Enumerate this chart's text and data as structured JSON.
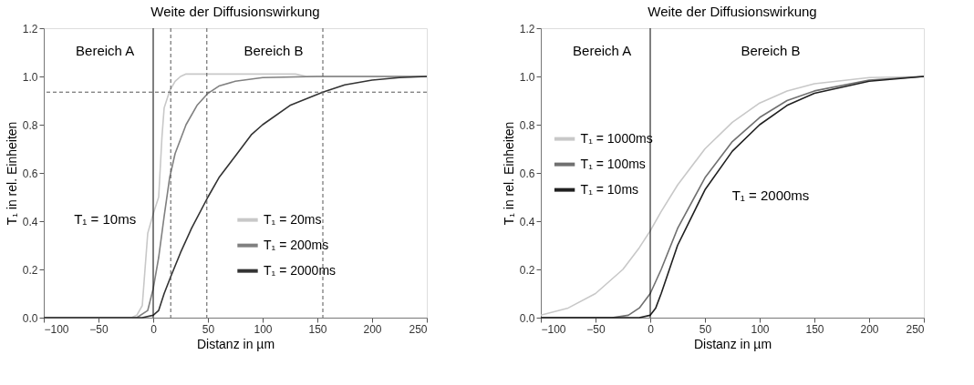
{
  "chart_data": [
    {
      "type": "line",
      "title": "Weite der Diffusionswirkung",
      "xlabel": "Distanz in µm",
      "ylabel": "T₁ in rel. Einheiten",
      "xlim": [
        -100,
        250
      ],
      "xticks": [
        -100,
        -50,
        0,
        50,
        100,
        150,
        200,
        250
      ],
      "ylim": [
        0,
        1.2
      ],
      "yticks": [
        {
          "value": 0,
          "label": "0.0"
        },
        {
          "value": 0.2,
          "label": "0.2"
        },
        {
          "value": 0.4,
          "label": "0.4"
        },
        {
          "value": 0.6,
          "label": "0.6"
        },
        {
          "value": 0.8,
          "label": "0.8"
        },
        {
          "value": 1,
          "label": "1.0"
        },
        {
          "value": 1.2,
          "label": "1.2"
        }
      ],
      "grid": false,
      "legend": "bottom",
      "marker": "none",
      "line_style": "solid",
      "annotations": [
        "Bereich A",
        "Bereich B",
        "T₁ = 10ms"
      ],
      "ref_lines": [
        {
          "axis": "x",
          "value": 0,
          "color": "#000000",
          "line_style": "solid"
        },
        {
          "axis": "y",
          "value": 0.935,
          "color": "#555555",
          "line_style": "dashed"
        },
        {
          "axis": "x",
          "value": 16,
          "color": "#555555",
          "line_style": "dashed"
        },
        {
          "axis": "x",
          "value": 49,
          "color": "#555555",
          "line_style": "dashed"
        },
        {
          "axis": "x",
          "value": 155,
          "color": "#555555",
          "line_style": "dashed"
        }
      ],
      "series": [
        {
          "name": "T₁ = 20ms",
          "color": "#c8c8c8",
          "x": [
            -100,
            -20,
            -15,
            -10,
            -5,
            0,
            5,
            8,
            10,
            15,
            20,
            25,
            30,
            130,
            140,
            250
          ],
          "values": [
            0,
            0,
            0.01,
            0.05,
            0.35,
            0.43,
            0.5,
            0.75,
            0.87,
            0.94,
            0.98,
            1.0,
            1.01,
            1.01,
            1.0,
            1.0
          ]
        },
        {
          "name": "T₁ = 200ms",
          "color": "#808080",
          "x": [
            -100,
            -15,
            -5,
            0,
            5,
            10,
            15,
            20,
            30,
            40,
            50,
            60,
            75,
            100,
            150,
            250
          ],
          "values": [
            0,
            0,
            0.03,
            0.12,
            0.25,
            0.42,
            0.58,
            0.68,
            0.8,
            0.88,
            0.93,
            0.96,
            0.98,
            0.995,
            1.0,
            1.0
          ]
        },
        {
          "name": "T₁ = 2000ms",
          "color": "#333333",
          "x": [
            -100,
            -10,
            0,
            5,
            10,
            16,
            25,
            35,
            50,
            60,
            75,
            90,
            100,
            125,
            155,
            175,
            200,
            225,
            250
          ],
          "values": [
            0,
            0,
            0.01,
            0.03,
            0.1,
            0.17,
            0.27,
            0.37,
            0.5,
            0.58,
            0.67,
            0.76,
            0.8,
            0.88,
            0.935,
            0.965,
            0.985,
            0.995,
            1.0
          ]
        }
      ]
    },
    {
      "type": "line",
      "title": "Weite der Diffusionswirkung",
      "xlabel": "Distanz in µm",
      "ylabel": "T₁ in rel. Einheiten",
      "xlim": [
        -100,
        250
      ],
      "xticks": [
        -100,
        -50,
        0,
        50,
        100,
        150,
        200,
        250
      ],
      "ylim": [
        0,
        1.2
      ],
      "yticks": [
        {
          "value": 0,
          "label": "0.0"
        },
        {
          "value": 0.2,
          "label": "0.2"
        },
        {
          "value": 0.4,
          "label": "0.4"
        },
        {
          "value": 0.6,
          "label": "0.6"
        },
        {
          "value": 0.8,
          "label": "0.8"
        },
        {
          "value": 1,
          "label": "1.0"
        },
        {
          "value": 1.2,
          "label": "1.2"
        }
      ],
      "grid": false,
      "legend": "left",
      "marker": "none",
      "line_style": "solid",
      "annotations": [
        "Bereich A",
        "Bereich B",
        "T₁ = 2000ms"
      ],
      "ref_lines": [
        {
          "axis": "x",
          "value": 0,
          "color": "#000000",
          "line_style": "solid"
        }
      ],
      "series": [
        {
          "name": "T₁ = 1000ms",
          "color": "#c8c8c8",
          "x": [
            -100,
            -75,
            -50,
            -25,
            -10,
            0,
            10,
            25,
            50,
            75,
            100,
            125,
            150,
            200,
            250
          ],
          "values": [
            0.01,
            0.04,
            0.1,
            0.2,
            0.29,
            0.36,
            0.44,
            0.55,
            0.7,
            0.81,
            0.89,
            0.94,
            0.97,
            0.995,
            1.0
          ]
        },
        {
          "name": "T₁ = 100ms",
          "color": "#707070",
          "x": [
            -100,
            -35,
            -20,
            -10,
            -5,
            0,
            10,
            25,
            50,
            75,
            100,
            125,
            150,
            200,
            250
          ],
          "values": [
            0,
            0,
            0.01,
            0.04,
            0.07,
            0.1,
            0.2,
            0.37,
            0.58,
            0.73,
            0.83,
            0.9,
            0.94,
            0.985,
            1.0
          ]
        },
        {
          "name": "T₁ = 10ms",
          "color": "#202020",
          "x": [
            -100,
            -10,
            0,
            5,
            10,
            25,
            50,
            75,
            100,
            125,
            150,
            200,
            250
          ],
          "values": [
            0,
            0,
            0.01,
            0.04,
            0.1,
            0.3,
            0.53,
            0.69,
            0.8,
            0.88,
            0.93,
            0.98,
            1.0
          ]
        }
      ]
    }
  ]
}
